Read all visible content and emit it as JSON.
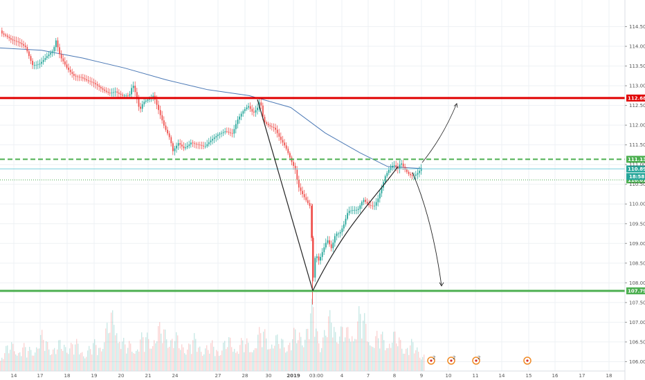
{
  "chart_data": {
    "type": "candlestick",
    "instrument_hint": "USD/JPY 4H",
    "title": "",
    "xlabel": "",
    "ylabel": "",
    "ylim": [
      105.85,
      115.0
    ],
    "y_ticks": [
      "114.500",
      "114.000",
      "113.500",
      "113.000",
      "112.500",
      "112.000",
      "111.500",
      "111.000",
      "110.500",
      "110.000",
      "109.500",
      "109.000",
      "108.500",
      "108.000",
      "107.500",
      "107.000",
      "106.500",
      "106.000"
    ],
    "x_ticks": [
      "14",
      "17",
      "18",
      "19",
      "20",
      "21",
      "24",
      "27",
      "28",
      "30",
      "2019",
      "03:00",
      "4",
      "7",
      "8",
      "9",
      "10",
      "11",
      "14",
      "15",
      "16",
      "17",
      "18"
    ],
    "colors": {
      "up": "#26a69a",
      "down": "#ef5350",
      "ma": "#4a78b5",
      "resistance": "#e00000",
      "support": "#4caf50",
      "dashed": "#4caf50",
      "path": "#222222"
    },
    "price_path": [
      [
        0,
        114.4
      ],
      [
        8,
        114.3
      ],
      [
        16,
        114.15
      ],
      [
        26,
        114.05
      ],
      [
        36,
        113.95
      ],
      [
        46,
        113.55
      ],
      [
        56,
        113.6
      ],
      [
        66,
        113.75
      ],
      [
        76,
        113.85
      ],
      [
        80,
        114.1
      ],
      [
        86,
        113.7
      ],
      [
        96,
        113.45
      ],
      [
        106,
        113.3
      ],
      [
        116,
        113.25
      ],
      [
        126,
        113.1
      ],
      [
        136,
        113.0
      ],
      [
        146,
        112.9
      ],
      [
        156,
        112.85
      ],
      [
        166,
        112.9
      ],
      [
        176,
        112.75
      ],
      [
        186,
        112.7
      ],
      [
        191,
        113.0
      ],
      [
        196,
        112.7
      ],
      [
        201,
        112.35
      ],
      [
        206,
        112.6
      ],
      [
        213,
        112.7
      ],
      [
        221,
        112.8
      ],
      [
        229,
        112.35
      ],
      [
        237,
        111.9
      ],
      [
        245,
        111.6
      ],
      [
        249,
        111.3
      ],
      [
        257,
        111.55
      ],
      [
        265,
        111.45
      ],
      [
        275,
        111.6
      ],
      [
        285,
        111.5
      ],
      [
        295,
        111.4
      ],
      [
        305,
        111.6
      ],
      [
        315,
        111.8
      ],
      [
        325,
        111.9
      ],
      [
        335,
        111.8
      ],
      [
        342,
        112.1
      ],
      [
        350,
        112.3
      ],
      [
        358,
        112.45
      ],
      [
        365,
        112.3
      ],
      [
        372,
        112.5
      ],
      [
        375,
        112.7
      ],
      [
        380,
        112.15
      ],
      [
        388,
        112.0
      ],
      [
        396,
        111.9
      ],
      [
        404,
        111.6
      ],
      [
        412,
        111.4
      ],
      [
        420,
        111.1
      ],
      [
        426,
        110.9
      ],
      [
        430,
        110.5
      ],
      [
        436,
        110.3
      ],
      [
        442,
        110.1
      ],
      [
        448,
        109.9
      ],
      [
        451,
        107.95
      ],
      [
        455,
        108.7
      ],
      [
        460,
        108.5
      ],
      [
        466,
        108.8
      ],
      [
        472,
        109.1
      ],
      [
        478,
        108.9
      ],
      [
        484,
        109.3
      ],
      [
        490,
        109.3
      ],
      [
        496,
        109.5
      ],
      [
        502,
        109.8
      ],
      [
        510,
        109.8
      ],
      [
        516,
        109.8
      ],
      [
        524,
        110.1
      ],
      [
        532,
        110.0
      ],
      [
        540,
        110.0
      ],
      [
        546,
        110.2
      ],
      [
        552,
        110.5
      ],
      [
        556,
        110.7
      ],
      [
        562,
        110.85
      ],
      [
        568,
        110.95
      ],
      [
        574,
        110.85
      ],
      [
        578,
        111.05
      ],
      [
        584,
        110.9
      ],
      [
        590,
        110.8
      ],
      [
        596,
        110.75
      ],
      [
        602,
        110.8
      ],
      [
        608,
        110.9
      ]
    ],
    "moving_average": [
      [
        0,
        113.96
      ],
      [
        60,
        113.9
      ],
      [
        120,
        113.7
      ],
      [
        180,
        113.45
      ],
      [
        240,
        113.15
      ],
      [
        300,
        112.9
      ],
      [
        360,
        112.75
      ],
      [
        420,
        112.45
      ],
      [
        470,
        111.8
      ],
      [
        520,
        111.3
      ],
      [
        560,
        110.95
      ],
      [
        610,
        110.9
      ]
    ],
    "volume_points": [
      [
        0,
        0.3
      ],
      [
        20,
        0.45
      ],
      [
        40,
        0.35
      ],
      [
        60,
        0.55
      ],
      [
        80,
        0.4
      ],
      [
        100,
        0.5
      ],
      [
        120,
        0.35
      ],
      [
        140,
        0.45
      ],
      [
        166,
        0.95
      ],
      [
        180,
        0.4
      ],
      [
        200,
        0.5
      ],
      [
        215,
        0.6
      ],
      [
        240,
        0.7
      ],
      [
        260,
        0.45
      ],
      [
        280,
        0.5
      ],
      [
        300,
        0.4
      ],
      [
        320,
        0.45
      ],
      [
        340,
        0.5
      ],
      [
        360,
        0.45
      ],
      [
        378,
        0.65
      ],
      [
        400,
        0.5
      ],
      [
        420,
        0.55
      ],
      [
        440,
        0.7
      ],
      [
        452,
        1.0
      ],
      [
        462,
        0.55
      ],
      [
        480,
        0.9
      ],
      [
        500,
        0.6
      ],
      [
        518,
        0.95
      ],
      [
        540,
        0.55
      ],
      [
        560,
        0.6
      ],
      [
        580,
        0.5
      ],
      [
        600,
        0.4
      ],
      [
        612,
        0.3
      ]
    ],
    "levels": [
      {
        "price": 112.688,
        "label": "112.688",
        "style": "resistance"
      },
      {
        "price": 111.134,
        "label": "111.134",
        "style": "dashed"
      },
      {
        "price": 110.89,
        "label": "110.890",
        "style": "current"
      },
      {
        "price": 110.612,
        "label": "110.612",
        "style": "dotted"
      },
      {
        "price": 107.796,
        "label": "107.796",
        "style": "support"
      }
    ],
    "time_badge": "18:58",
    "drawings": {
      "down_leg": [
        [
          372,
          112.65
        ],
        [
          452,
          107.8
        ]
      ],
      "up_curve": [
        [
          452,
          107.8
        ],
        [
          500,
          109.5
        ],
        [
          540,
          110.1
        ],
        [
          575,
          110.95
        ]
      ],
      "projection_up": [
        [
          610,
          111.05
        ],
        [
          640,
          111.7
        ],
        [
          660,
          112.55
        ]
      ],
      "projection_down": [
        [
          596,
          110.8
        ],
        [
          625,
          109.6
        ],
        [
          638,
          107.92
        ]
      ]
    },
    "event_markers": [
      {
        "x": 623,
        "text": "2"
      },
      {
        "x": 652,
        "text": "2"
      },
      {
        "x": 688,
        "text": "2"
      },
      {
        "x": 762,
        "text": ""
      }
    ]
  }
}
